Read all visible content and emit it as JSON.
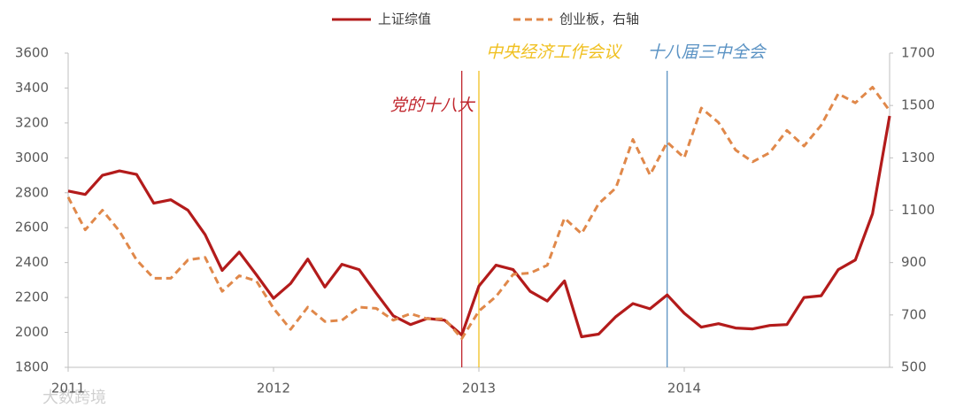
{
  "chart_data": {
    "type": "line",
    "categories": [
      "2011",
      null,
      null,
      null,
      null,
      null,
      null,
      null,
      null,
      null,
      null,
      null,
      "2012",
      null,
      null,
      null,
      null,
      null,
      null,
      null,
      null,
      null,
      null,
      null,
      "2013",
      null,
      null,
      null,
      null,
      null,
      null,
      null,
      null,
      null,
      null,
      null,
      "2014",
      null,
      null,
      null,
      null,
      null,
      null,
      null,
      null,
      null,
      null,
      null,
      null
    ],
    "series": [
      {
        "name": "上证综值",
        "color": "#b31b1b",
        "dash": false,
        "values": [
          2810,
          2790,
          2900,
          2925,
          2905,
          2740,
          2760,
          2700,
          2560,
          2355,
          2460,
          2330,
          2195,
          2280,
          2420,
          2260,
          2390,
          2360,
          2225,
          2095,
          2045,
          2080,
          2070,
          1985,
          2265,
          2385,
          2360,
          2235,
          2180,
          2295,
          1975,
          1990,
          2090,
          2165,
          2135,
          2215,
          2110,
          2030,
          2050,
          2025,
          2020,
          2040,
          2045,
          2200,
          2210,
          2360,
          2415,
          2680,
          3240
        ]
      },
      {
        "name": "创业板，右轴",
        "color": "#e0884a",
        "dash": true,
        "axis": "y2",
        "values": [
          1150,
          1025,
          1100,
          1020,
          910,
          840,
          840,
          910,
          920,
          790,
          850,
          830,
          725,
          645,
          730,
          675,
          680,
          730,
          725,
          680,
          705,
          685,
          685,
          610,
          715,
          770,
          855,
          860,
          890,
          1070,
          1010,
          1125,
          1185,
          1370,
          1235,
          1360,
          1300,
          1490,
          1435,
          1330,
          1285,
          1320,
          1405,
          1345,
          1425,
          1545,
          1510,
          1570,
          1480
        ]
      }
    ],
    "ylim": [
      1800,
      3600
    ],
    "yticks": [
      1800,
      2000,
      2200,
      2400,
      2600,
      2800,
      3000,
      3200,
      3400,
      3600
    ],
    "y2lim": [
      500,
      1700
    ],
    "y2ticks": [
      500,
      700,
      900,
      1100,
      1300,
      1500,
      1700
    ],
    "annotations": [
      {
        "text": "党的十八大",
        "at": 23,
        "color": "#c0262d"
      },
      {
        "text": "中央经济工作会议",
        "at": 24,
        "color": "#f0c020"
      },
      {
        "text": "十八届三中全会",
        "at": 35,
        "color": "#5b93c4"
      }
    ],
    "legend": "top",
    "watermark": "大数跨境"
  }
}
